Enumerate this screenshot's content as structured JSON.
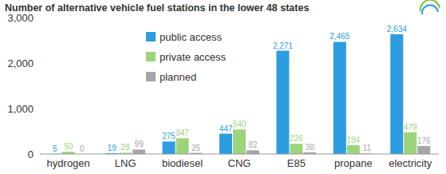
{
  "chart_data": {
    "type": "bar",
    "title": "Number of alternative vehicle fuel stations in the lower 48 states",
    "categories": [
      "hydrogen",
      "LNG",
      "biodiesel",
      "CNG",
      "E85",
      "propane",
      "electricity"
    ],
    "series": [
      {
        "name": "public access",
        "color": "#2b9de0",
        "values": [
          5,
          19,
          275,
          447,
          2271,
          2465,
          2634
        ],
        "value_labels": [
          "5",
          "19",
          "275",
          "447",
          "2,271",
          "2,465",
          "2,634"
        ]
      },
      {
        "name": "private access",
        "color": "#9dd37a",
        "values": [
          50,
          28,
          347,
          540,
          226,
          194,
          479
        ]
      },
      {
        "name": "planned",
        "color": "#a6a6a6",
        "values": [
          0,
          99,
          25,
          82,
          38,
          11,
          176
        ]
      }
    ],
    "ylim": [
      0,
      3000
    ],
    "yticks": [
      0,
      {
        "value": 1000,
        "label": "1,000"
      },
      {
        "value": 2000,
        "label": "2,000"
      },
      {
        "value": 3000,
        "label": "3,000"
      }
    ],
    "grid": false,
    "legend": "upper-left",
    "data_labels": true
  }
}
